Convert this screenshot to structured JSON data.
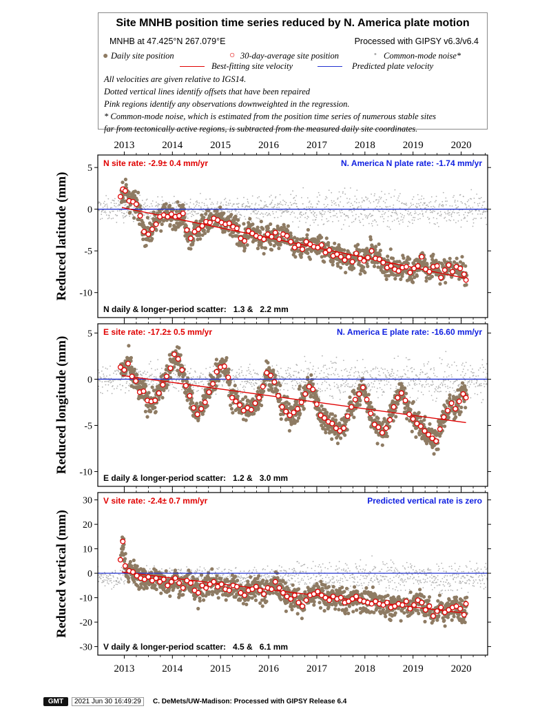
{
  "header": {
    "title": "Site MNHB position time series reduced by N. America plate motion",
    "site_location": "MNHB at 47.425°N 267.079°E",
    "processing": "Processed with GIPSY v6.3/v6.4",
    "legend": {
      "daily": "Daily site position",
      "avg30": "30-day-average site position",
      "cmn": "Common-mode noise*",
      "best_fit": "Best-fitting site velocity",
      "predicted": "Predicted plate velocity"
    },
    "notes": [
      "All velocities are given relative to IGS14.",
      "Dotted vertical lines identify offsets that have been repaired",
      "Pink regions identify any observations downweighted in the regression.",
      "* Common-mode noise, which is estimated from the position time series of numerous stable sites",
      "far from tectonically active regions, is subtracted from the measured daily site coordinates."
    ]
  },
  "colors": {
    "daily": "#8e7b63",
    "avg30_stroke": "#e00000",
    "cmn": "#b0b0b0",
    "best_fit": "#e00000",
    "predicted": "#2030d0",
    "site_rate_text": "#e00000",
    "plate_rate_text": "#1020e0"
  },
  "footer": {
    "logo": "GMT",
    "timestamp": "2021 Jun 30 16:49:29",
    "credit": "C. DeMets/UW-Madison: Processed with GIPSY Release 6.4"
  },
  "chart_data": [
    {
      "type": "scatter",
      "component": "N",
      "ylabel": "Reduced latitude (mm)",
      "ylim": [
        -13,
        6.5
      ],
      "yticks": [
        5,
        0,
        -5,
        -10
      ],
      "xlim": [
        2012.45,
        2020.55
      ],
      "xticks": [
        2013,
        2014,
        2015,
        2016,
        2017,
        2018,
        2019,
        2020
      ],
      "site_rate": "N site rate:  -2.9± 0.4 mm/yr",
      "plate_rate": "N. America N plate rate: -1.74 mm/yr",
      "scatter_text": "N daily & longer-period scatter:   1.3 &   2.2 mm",
      "best_fit": {
        "x": [
          2012.95,
          2020.1
        ],
        "y": [
          0.2,
          -8.3
        ]
      },
      "predicted_y": 0,
      "avg30": {
        "x": [
          2012.92,
          2012.97,
          2013.02,
          2013.1,
          2013.18,
          2013.25,
          2013.33,
          2013.41,
          2013.5,
          2013.58,
          2013.66,
          2013.74,
          2013.82,
          2013.9,
          2013.98,
          2014.06,
          2014.14,
          2014.22,
          2014.3,
          2014.38,
          2014.46,
          2014.54,
          2014.62,
          2014.7,
          2014.78,
          2014.86,
          2014.94,
          2015.02,
          2015.1,
          2015.18,
          2015.26,
          2015.34,
          2015.42,
          2015.5,
          2015.58,
          2015.66,
          2015.74,
          2015.82,
          2015.9,
          2015.98,
          2016.06,
          2016.14,
          2016.22,
          2016.3,
          2016.38,
          2016.46,
          2016.54,
          2016.62,
          2016.7,
          2016.78,
          2016.86,
          2016.94,
          2017.02,
          2017.1,
          2017.18,
          2017.26,
          2017.34,
          2017.42,
          2017.5,
          2017.58,
          2017.66,
          2017.74,
          2017.82,
          2017.9,
          2017.98,
          2018.06,
          2018.14,
          2018.22,
          2018.3,
          2018.38,
          2018.46,
          2018.54,
          2018.62,
          2018.7,
          2018.78,
          2018.86,
          2018.94,
          2019.02,
          2019.1,
          2019.18,
          2019.26,
          2019.34,
          2019.42,
          2019.5,
          2019.58,
          2019.66,
          2019.74,
          2019.82,
          2019.9,
          2019.98,
          2020.06,
          2020.1
        ],
        "y": [
          1.5,
          2.4,
          2.2,
          1.0,
          0.9,
          0.6,
          -0.8,
          -2.7,
          -3.0,
          -2.4,
          -1.8,
          -0.9,
          -0.7,
          -0.9,
          -0.6,
          -0.9,
          -0.8,
          -0.5,
          -2.5,
          -3.5,
          -2.7,
          -2.4,
          -2.0,
          -1.5,
          -1.6,
          -1.1,
          -1.3,
          -1.6,
          -1.8,
          -1.7,
          -2.1,
          -2.3,
          -3.5,
          -3.8,
          -2.6,
          -2.9,
          -3.2,
          -3.4,
          -3.6,
          -3.0,
          -3.3,
          -2.8,
          -3.6,
          -3.0,
          -3.2,
          -3.9,
          -4.6,
          -4.3,
          -4.8,
          -3.9,
          -4.2,
          -4.5,
          -4.6,
          -4.3,
          -5.2,
          -4.9,
          -5.6,
          -5.4,
          -5.7,
          -6.1,
          -5.7,
          -6.3,
          -5.3,
          -5.9,
          -6.2,
          -5.8,
          -5.0,
          -5.9,
          -6.0,
          -6.4,
          -7.0,
          -6.8,
          -7.2,
          -7.4,
          -7.0,
          -6.9,
          -7.6,
          -7.1,
          -6.8,
          -5.7,
          -7.2,
          -7.5,
          -6.9,
          -6.8,
          -8.2,
          -7.3,
          -6.7,
          -7.5,
          -6.9,
          -7.1,
          -7.8,
          -8.5
        ]
      }
    },
    {
      "type": "scatter",
      "component": "E",
      "ylabel": "Reduced longitude (mm)",
      "ylim": [
        -11.6,
        6.0
      ],
      "yticks": [
        5,
        0,
        -5,
        -10
      ],
      "xlim": [
        2012.45,
        2020.55
      ],
      "xticks": [
        2013,
        2014,
        2015,
        2016,
        2017,
        2018,
        2019,
        2020
      ],
      "site_rate": "E site rate: -17.2± 0.5 mm/yr",
      "plate_rate": "N. America E plate rate: -16.60 mm/yr",
      "scatter_text": "E daily & longer-period scatter:   1.2 &   3.0 mm",
      "best_fit": {
        "x": [
          2012.95,
          2020.1
        ],
        "y": [
          0.4,
          -4.7
        ]
      },
      "predicted_y": 0,
      "avg30": {
        "x": [
          2012.92,
          2013.0,
          2013.08,
          2013.16,
          2013.24,
          2013.32,
          2013.4,
          2013.48,
          2013.56,
          2013.64,
          2013.72,
          2013.8,
          2013.88,
          2013.96,
          2014.04,
          2014.12,
          2014.2,
          2014.28,
          2014.36,
          2014.44,
          2014.52,
          2014.6,
          2014.68,
          2014.76,
          2014.84,
          2014.92,
          2015.0,
          2015.08,
          2015.16,
          2015.24,
          2015.32,
          2015.4,
          2015.48,
          2015.56,
          2015.64,
          2015.72,
          2015.8,
          2015.88,
          2015.96,
          2016.04,
          2016.12,
          2016.2,
          2016.28,
          2016.36,
          2016.44,
          2016.52,
          2016.6,
          2016.68,
          2016.76,
          2016.84,
          2016.92,
          2017.0,
          2017.08,
          2017.16,
          2017.24,
          2017.32,
          2017.4,
          2017.48,
          2017.56,
          2017.64,
          2017.72,
          2017.8,
          2017.88,
          2017.96,
          2018.04,
          2018.12,
          2018.2,
          2018.28,
          2018.36,
          2018.44,
          2018.52,
          2018.6,
          2018.68,
          2018.76,
          2018.84,
          2018.92,
          2019.0,
          2019.08,
          2019.16,
          2019.24,
          2019.32,
          2019.4,
          2019.48,
          2019.56,
          2019.64,
          2019.72,
          2019.8,
          2019.88,
          2019.96,
          2020.04,
          2020.1
        ],
        "y": [
          1.3,
          1.0,
          1.7,
          0.3,
          -0.2,
          -1.4,
          -1.3,
          -2.3,
          -2.4,
          -2.3,
          -1.5,
          -0.6,
          0.3,
          1.2,
          2.7,
          2.2,
          1.0,
          -0.7,
          -1.8,
          -3.1,
          -3.8,
          -3.2,
          -2.5,
          -1.4,
          -0.5,
          0.8,
          1.3,
          1.4,
          0.2,
          -2.0,
          -2.4,
          -2.8,
          -3.4,
          -3.1,
          -3.3,
          -2.6,
          -2.0,
          -0.8,
          0.7,
          0.4,
          -0.3,
          -1.8,
          -3.0,
          -3.5,
          -3.9,
          -3.6,
          -3.2,
          -2.5,
          -1.6,
          -0.8,
          -1.1,
          -2.7,
          -3.9,
          -4.2,
          -4.6,
          -4.8,
          -5.3,
          -5.6,
          -5.3,
          -4.0,
          -3.0,
          -2.2,
          -1.6,
          -0.9,
          -2.2,
          -3.7,
          -4.9,
          -5.2,
          -5.8,
          -5.3,
          -4.4,
          -3.0,
          -2.0,
          -1.5,
          -2.3,
          -3.8,
          -4.3,
          -4.8,
          -5.1,
          -5.6,
          -6.0,
          -6.4,
          -6.7,
          -5.4,
          -4.1,
          -3.4,
          -2.6,
          -3.2,
          -2.4,
          -1.6,
          -2.0
        ]
      }
    },
    {
      "type": "scatter",
      "component": "V",
      "ylabel": "Reduced vertical (mm)",
      "ylim": [
        -33.5,
        33
      ],
      "yticks": [
        30,
        20,
        10,
        0,
        -10,
        -20,
        -30
      ],
      "xlim": [
        2012.45,
        2020.55
      ],
      "xticks": [
        2013,
        2014,
        2015,
        2016,
        2017,
        2018,
        2019,
        2020
      ],
      "site_rate": "V site rate:  -2.4± 0.7 mm/yr",
      "plate_rate": "Predicted vertical rate is zero",
      "scatter_text": "V daily & longer-period scatter:   4.5 &   6.1 mm",
      "best_fit": {
        "x": [
          2012.95,
          2020.1
        ],
        "y": [
          0.5,
          -16.4
        ]
      },
      "predicted_y": 0,
      "avg30": {
        "x": [
          2012.92,
          2012.97,
          2013.02,
          2013.1,
          2013.18,
          2013.26,
          2013.34,
          2013.42,
          2013.5,
          2013.58,
          2013.66,
          2013.74,
          2013.82,
          2013.9,
          2013.98,
          2014.06,
          2014.14,
          2014.22,
          2014.3,
          2014.38,
          2014.46,
          2014.54,
          2014.62,
          2014.7,
          2014.78,
          2014.86,
          2014.94,
          2015.02,
          2015.1,
          2015.18,
          2015.26,
          2015.34,
          2015.42,
          2015.5,
          2015.58,
          2015.66,
          2015.74,
          2015.82,
          2015.9,
          2015.98,
          2016.06,
          2016.14,
          2016.22,
          2016.3,
          2016.38,
          2016.46,
          2016.54,
          2016.62,
          2016.7,
          2016.78,
          2016.86,
          2016.94,
          2017.02,
          2017.1,
          2017.18,
          2017.26,
          2017.34,
          2017.42,
          2017.5,
          2017.58,
          2017.66,
          2017.74,
          2017.82,
          2017.9,
          2017.98,
          2018.06,
          2018.14,
          2018.22,
          2018.3,
          2018.38,
          2018.46,
          2018.54,
          2018.62,
          2018.7,
          2018.78,
          2018.86,
          2018.94,
          2019.02,
          2019.1,
          2019.18,
          2019.26,
          2019.34,
          2019.42,
          2019.5,
          2019.58,
          2019.66,
          2019.74,
          2019.82,
          2019.9,
          2019.98,
          2020.06,
          2020.1
        ],
        "y": [
          5.5,
          13,
          3.0,
          1.0,
          0.5,
          -1.0,
          -2.0,
          -2.5,
          -1.5,
          -3.0,
          -2.0,
          -3.5,
          -2.5,
          -5.0,
          -3.5,
          -2.0,
          -4.0,
          -6.0,
          -3.0,
          -4.0,
          -7.0,
          -8.0,
          -5.0,
          -6.0,
          -4.5,
          -3.5,
          -5.5,
          -4.5,
          -6.5,
          -7.0,
          -5.0,
          -5.5,
          -8.0,
          -9.0,
          -7.0,
          -6.5,
          -5.5,
          -7.0,
          -8.5,
          -6.0,
          -6.5,
          -3.5,
          -6.0,
          -8.0,
          -9.5,
          -10.5,
          -9.0,
          -12.0,
          -13.5,
          -11.0,
          -9.0,
          -8.5,
          -7.5,
          -9.0,
          -10.0,
          -11.0,
          -9.5,
          -10.5,
          -10.0,
          -12.0,
          -11.5,
          -10.5,
          -9.5,
          -11.0,
          -11.5,
          -12.0,
          -12.5,
          -11.5,
          -12.5,
          -13.0,
          -12.0,
          -14.0,
          -13.5,
          -12.5,
          -13.0,
          -11.5,
          -14.5,
          -13.0,
          -11.0,
          -12.0,
          -15.0,
          -13.5,
          -17.5,
          -15.5,
          -14.0,
          -16.0,
          -15.0,
          -14.0,
          -13.5,
          -14.5,
          -17.0,
          -12.5
        ]
      }
    }
  ]
}
